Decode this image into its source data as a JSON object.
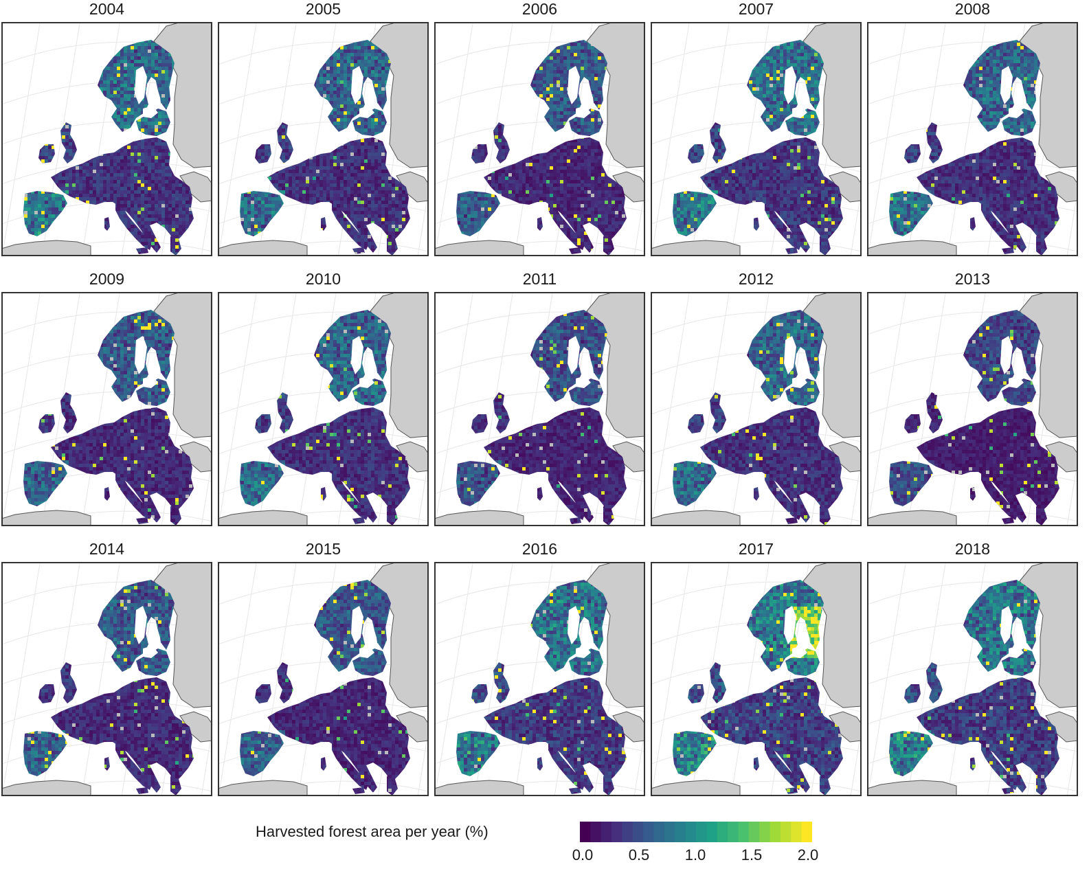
{
  "panels": [
    {
      "year": "2004",
      "intensity": 0.32
    },
    {
      "year": "2005",
      "intensity": 0.3
    },
    {
      "year": "2006",
      "intensity": 0.24
    },
    {
      "year": "2007",
      "intensity": 0.34
    },
    {
      "year": "2008",
      "intensity": 0.3
    },
    {
      "year": "2009",
      "intensity": 0.26
    },
    {
      "year": "2010",
      "intensity": 0.3
    },
    {
      "year": "2011",
      "intensity": 0.22
    },
    {
      "year": "2012",
      "intensity": 0.3
    },
    {
      "year": "2013",
      "intensity": 0.18
    },
    {
      "year": "2014",
      "intensity": 0.26
    },
    {
      "year": "2015",
      "intensity": 0.24
    },
    {
      "year": "2016",
      "intensity": 0.36
    },
    {
      "year": "2017",
      "intensity": 0.4
    },
    {
      "year": "2018",
      "intensity": 0.38
    }
  ],
  "legend": {
    "label": "Harvested forest area per year (%)",
    "ticks": [
      "0.0",
      "0.5",
      "1.0",
      "1.5",
      "2.0"
    ],
    "range": [
      0.0,
      2.0
    ],
    "colors": [
      "#440154",
      "#46307e",
      "#365c8d",
      "#277f8e",
      "#1fa187",
      "#4ac16d",
      "#a0da39",
      "#fde725"
    ]
  },
  "colors": {
    "land_outside": "#cccccc",
    "coastline": "#555555",
    "graticule": "#e6e6e6",
    "frame": "#333333",
    "no_data": "#bbbbbb"
  }
}
